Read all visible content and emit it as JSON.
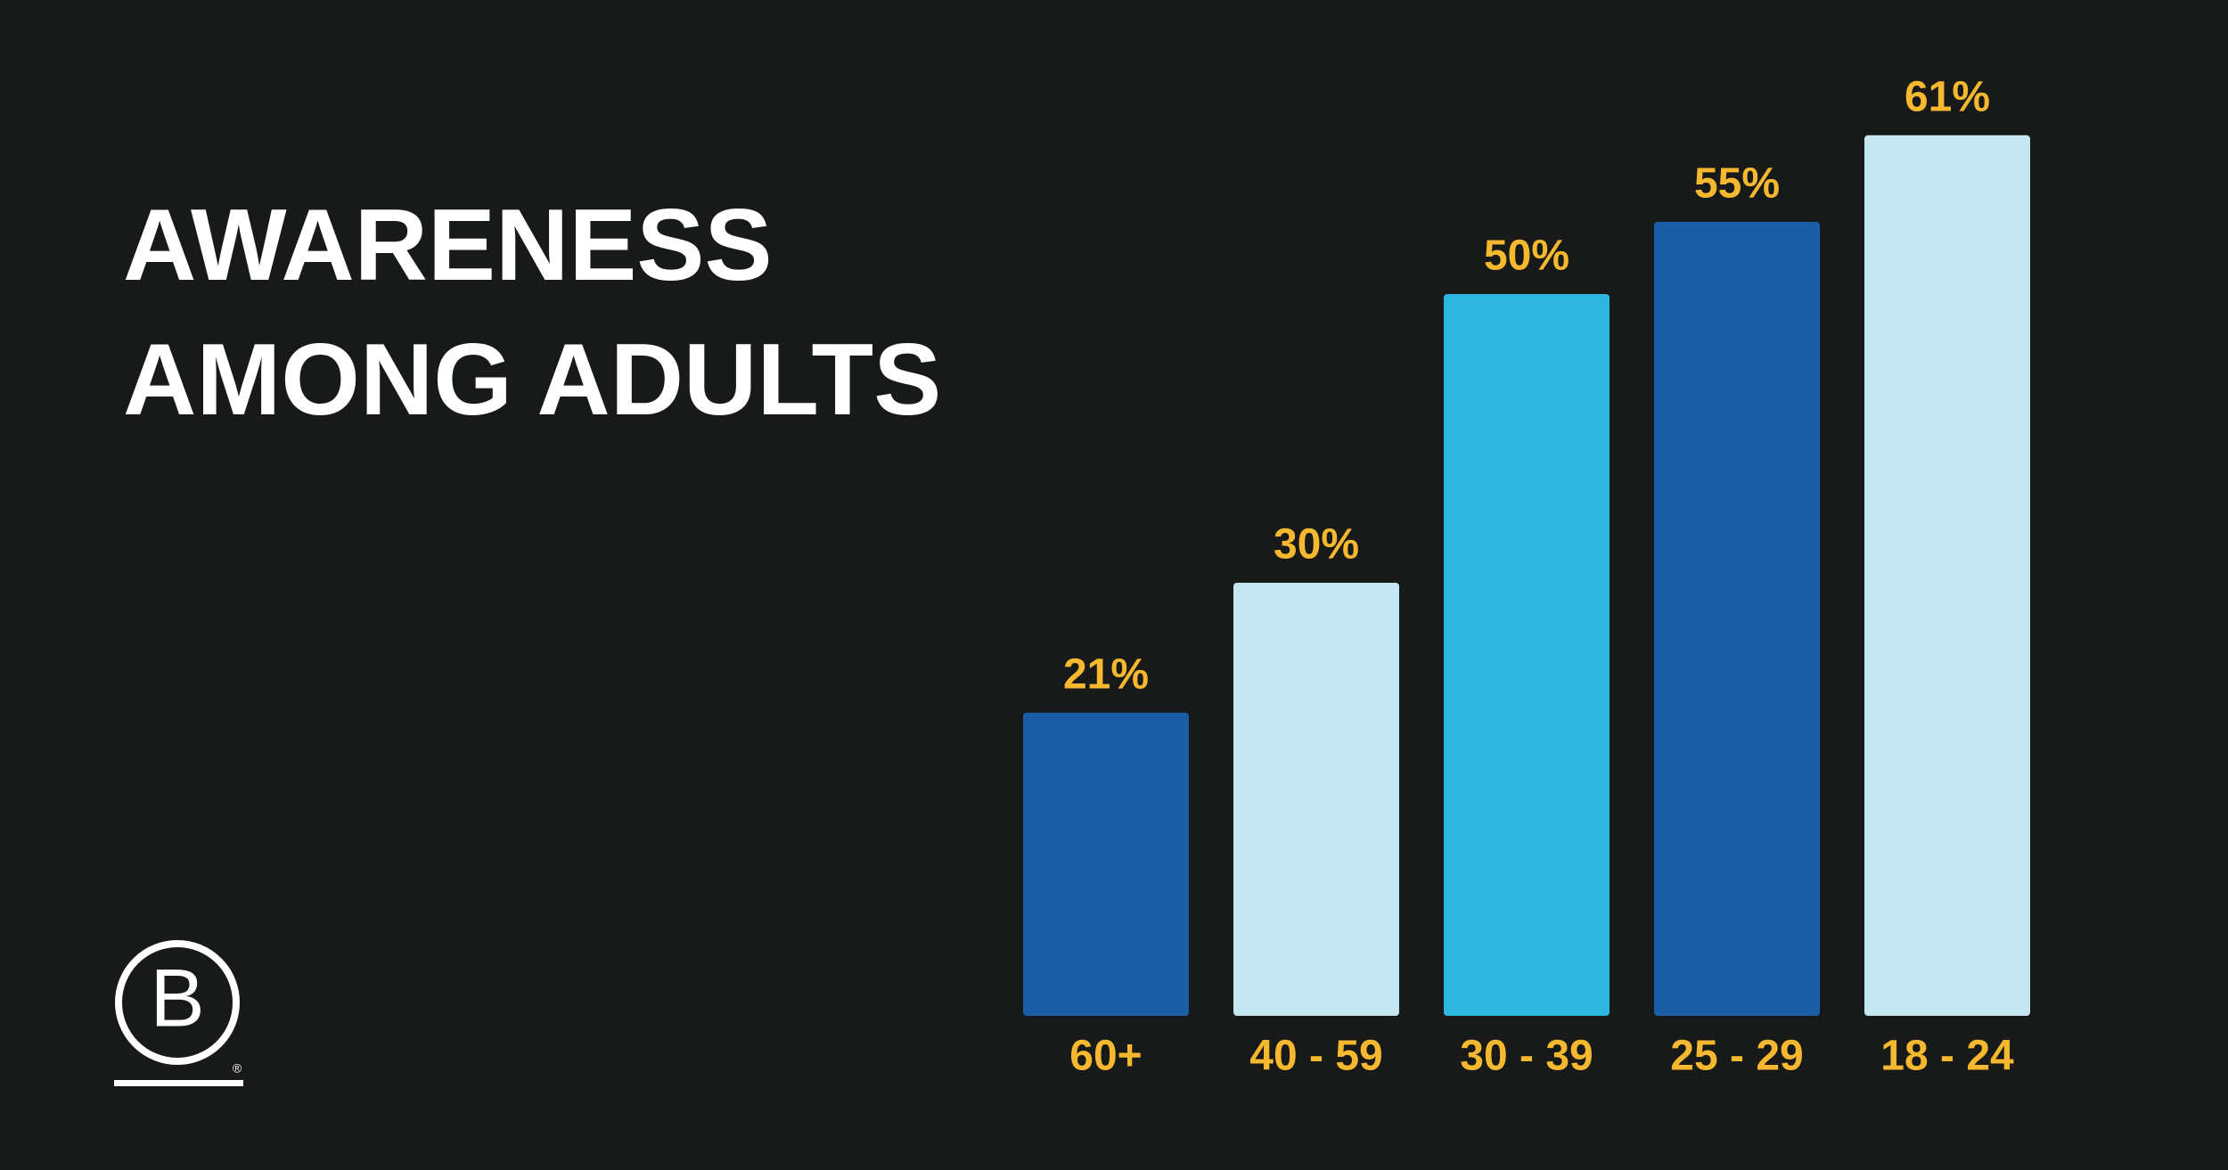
{
  "chart_data": {
    "type": "bar",
    "title": [
      "AWARENESS",
      "AMONG ADULTS"
    ],
    "categories": [
      "60+",
      "40 - 59",
      "30 - 39",
      "25 - 29",
      "18 - 24"
    ],
    "values": [
      21,
      30,
      50,
      55,
      61
    ],
    "value_labels": [
      "21%",
      "30%",
      "50%",
      "55%",
      "61%"
    ],
    "colors": [
      "#1b5ea5",
      "#c3e6f0",
      "#2fb6e0",
      "#1b5ea5",
      "#c3e6f0"
    ],
    "label_color": "#f5b82e"
  },
  "logo": {
    "letter": "B",
    "mark": "®"
  }
}
